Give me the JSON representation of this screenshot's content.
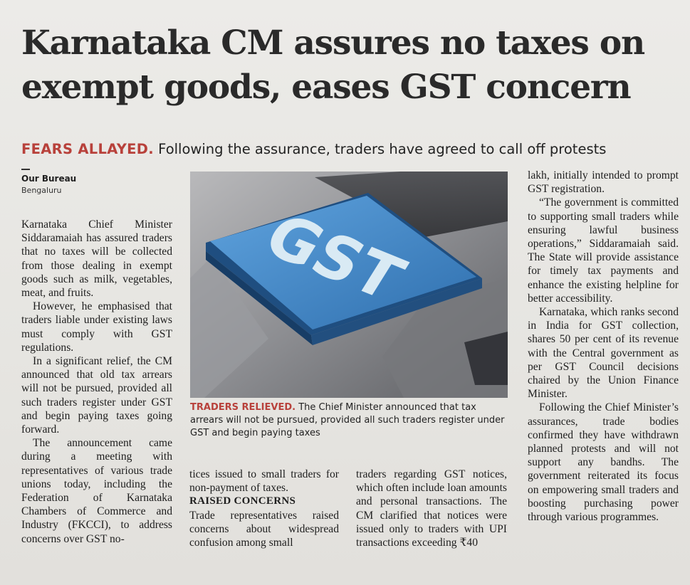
{
  "article": {
    "headline": "Karnataka CM assures no taxes on exempt goods, eases GST concern",
    "kicker_tag": "FEARS ALLAYED.",
    "kicker_text": " Following the assurance, traders have agreed to call off protests",
    "byline": "Our Bureau",
    "dateline": "Bengaluru",
    "col1": [
      "Karnataka Chief Minister Siddaramaiah has assured traders that no taxes will be collected from those dealing in exempt goods such as milk, vegetables, meat, and fruits.",
      "However, he emphasised that traders liable under existing laws must comply with GST regulations.",
      "In a significant relief, the CM announced that old tax arrears will not be pursued, provided all such traders register under GST and begin paying taxes going forward.",
      "The announcement came during a meeting with representatives of various trade unions today, including the Federation of Karnataka Chambers of Commerce and Industry (FKCCI), to address concerns over GST no-"
    ],
    "col2_p1": "tices issued to small traders for non-payment of taxes.",
    "subhead": "RAISED CONCERNS",
    "col2_p2": "Trade representatives raised concerns about widespread confusion among small",
    "col3_p1": "traders regarding GST notices, which often include loan amounts and personal transactions. The CM clarified that notices were issued only to traders with UPI transactions exceeding ₹40",
    "col4": [
      "lakh, initially intended to prompt GST registration.",
      "“The government is committed to supporting small traders while ensuring lawful business operations,” Siddaramaiah said. The State will provide assistance for timely tax payments and enhance the existing helpline for better accessibility.",
      "Karnataka, which ranks second in India for GST collection, shares 50 per cent of its revenue with the Central government as per GST Council decisions chaired by the Union Finance Minister.",
      "Following the Chief Minister’s assurances, trade bodies confirmed they have withdrawn planned protests and will not support any bandhs. The government reiterated its focus on empowering small traders and boosting purchasing power through various programmes."
    ],
    "photo": {
      "key_label": "GST",
      "caption_tag": "TRADERS RELIEVED.",
      "caption_text": " The Chief Minister announced that tax arrears will not be pursued, provided all such traders register under GST and begin paying taxes"
    }
  },
  "colors": {
    "accent": "#b8413b",
    "key_blue": "#3f86c4",
    "paper": "#e9e7e3"
  }
}
